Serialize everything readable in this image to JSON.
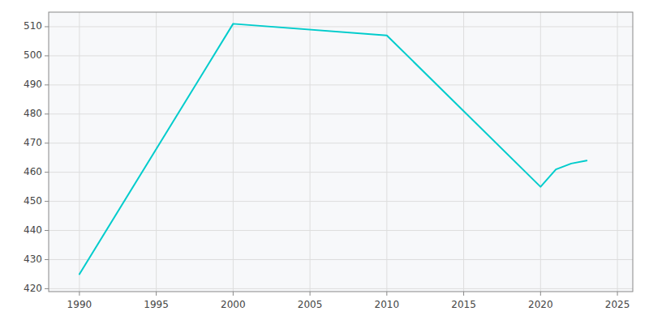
{
  "chart_data": {
    "type": "line",
    "x": [
      1990,
      2000,
      2010,
      2020,
      2021,
      2022,
      2023
    ],
    "values": [
      425,
      511,
      507,
      455,
      461,
      463,
      464
    ],
    "color": "#00CCCC",
    "xlim": [
      1988,
      2026
    ],
    "ylim": [
      419,
      515
    ],
    "xticks": [
      1990,
      1995,
      2000,
      2005,
      2010,
      2015,
      2020,
      2025
    ],
    "yticks": [
      420,
      430,
      440,
      450,
      460,
      470,
      480,
      490,
      500,
      510
    ],
    "grid": true
  }
}
